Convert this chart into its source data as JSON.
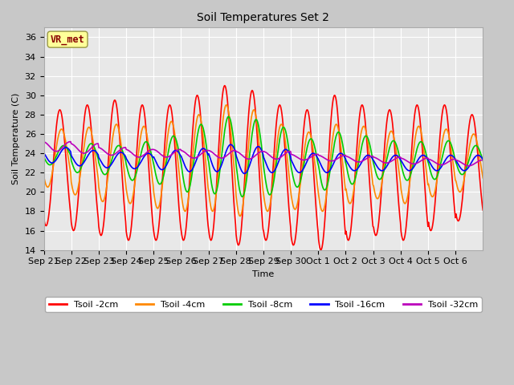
{
  "title": "Soil Temperatures Set 2",
  "xlabel": "Time",
  "ylabel": "Soil Temperature (C)",
  "ylim": [
    14,
    37
  ],
  "yticks": [
    14,
    16,
    18,
    20,
    22,
    24,
    26,
    28,
    30,
    32,
    34,
    36
  ],
  "fig_bg_color": "#c8c8c8",
  "plot_bg": "#e8e8e8",
  "grid_color": "#ffffff",
  "series_colors": {
    "Tsoil -2cm": "#ff0000",
    "Tsoil -4cm": "#ff8800",
    "Tsoil -8cm": "#00cc00",
    "Tsoil -16cm": "#0000ff",
    "Tsoil -32cm": "#bb00bb"
  },
  "annotation_text": "VR_met",
  "annotation_box_color": "#ffff99",
  "annotation_text_color": "#880000",
  "n_days": 16,
  "amplitude_2cm": [
    6.0,
    6.5,
    7.0,
    7.0,
    7.0,
    7.5,
    8.0,
    8.0,
    7.0,
    7.0,
    8.0,
    7.0,
    6.5,
    7.0,
    6.5,
    5.5
  ],
  "amplitude_4cm": [
    3.0,
    3.5,
    4.0,
    4.0,
    4.5,
    5.0,
    5.5,
    5.5,
    4.5,
    4.0,
    4.5,
    4.0,
    3.5,
    4.0,
    3.5,
    3.0
  ],
  "amplitude_8cm": [
    1.0,
    1.5,
    1.5,
    2.0,
    2.5,
    3.5,
    4.0,
    4.0,
    3.5,
    2.5,
    3.0,
    2.5,
    2.0,
    2.0,
    2.0,
    1.5
  ],
  "amplitude_16cm": [
    0.8,
    0.8,
    0.8,
    0.8,
    1.0,
    1.2,
    1.4,
    1.4,
    1.2,
    1.0,
    1.0,
    0.8,
    0.8,
    0.8,
    0.8,
    0.8
  ],
  "amplitude_32cm": [
    0.5,
    0.5,
    0.4,
    0.4,
    0.4,
    0.4,
    0.4,
    0.4,
    0.4,
    0.3,
    0.3,
    0.3,
    0.3,
    0.3,
    0.3,
    0.3
  ],
  "mean_2cm": [
    22.5,
    22.5,
    22.5,
    22.0,
    22.0,
    22.5,
    23.0,
    22.5,
    22.0,
    21.5,
    22.0,
    22.0,
    22.0,
    22.0,
    22.5,
    22.5
  ],
  "mean_4cm": [
    23.5,
    23.2,
    23.0,
    22.8,
    22.8,
    23.0,
    23.5,
    23.0,
    22.5,
    22.2,
    22.5,
    22.8,
    22.8,
    22.8,
    23.0,
    23.0
  ],
  "mean_8cm": [
    23.8,
    23.5,
    23.3,
    23.2,
    23.3,
    23.5,
    23.8,
    23.5,
    23.2,
    23.0,
    23.2,
    23.3,
    23.3,
    23.2,
    23.3,
    23.3
  ],
  "mean_16cm": [
    23.8,
    23.5,
    23.3,
    23.2,
    23.3,
    23.3,
    23.5,
    23.3,
    23.2,
    23.0,
    23.0,
    23.0,
    23.0,
    23.0,
    23.0,
    23.0
  ],
  "mean_32cm": [
    24.7,
    24.5,
    24.2,
    24.0,
    24.0,
    23.9,
    23.9,
    23.8,
    23.8,
    23.6,
    23.5,
    23.4,
    23.3,
    23.2,
    23.1,
    23.0
  ],
  "phase_2cm": 0.0,
  "phase_4cm": 0.06,
  "phase_8cm": 0.14,
  "phase_16cm": 0.22,
  "phase_32cm": 0.38,
  "pts_per_day": 48,
  "x_tick_labels": [
    "Sep 21",
    "Sep 22",
    "Sep 23",
    "Sep 24",
    "Sep 25",
    "Sep 26",
    "Sep 27",
    "Sep 28",
    "Sep 29",
    "Sep 30",
    "Oct 1",
    "Oct 2",
    "Oct 3",
    "Oct 4",
    "Oct 5",
    "Oct 6"
  ]
}
